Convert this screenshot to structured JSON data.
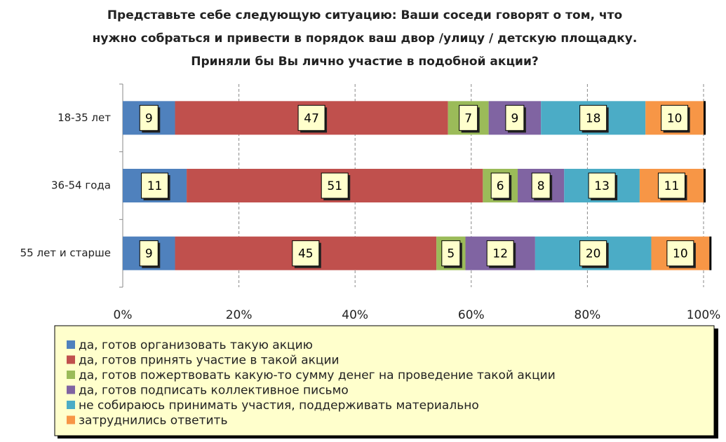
{
  "chart_data": {
    "type": "stacked_bar_horizontal",
    "title": "Представьте себе следующую ситуацию: Ваши соседи говорят о том, что нужно собраться и привести в порядок ваш двор /улицу / детскую площадку. Приняли бы Вы лично участие в подобной акции?",
    "categories": [
      "18-35 лет",
      "36-54 года",
      "55 лет и старше"
    ],
    "series": [
      {
        "name": "да, готов организовать такую акцию",
        "color": "#4f81bd",
        "values": [
          9,
          11,
          9
        ]
      },
      {
        "name": "да, готов принять участие в такой акции",
        "color": "#c0504d",
        "values": [
          47,
          51,
          45
        ]
      },
      {
        "name": "да, готов пожертвовать какую-то сумму денег на проведение такой акции",
        "color": "#9bbb59",
        "values": [
          7,
          6,
          5
        ]
      },
      {
        "name": "да, готов подписать коллективное письмо",
        "color": "#8064a2",
        "values": [
          9,
          8,
          12
        ]
      },
      {
        "name": "не собираюсь принимать участия, поддерживать материально",
        "color": "#4bacc6",
        "values": [
          18,
          13,
          20
        ]
      },
      {
        "name": "затруднились ответить",
        "color": "#f79646",
        "values": [
          10,
          11,
          10
        ]
      }
    ],
    "xlim": [
      0,
      100
    ],
    "xticks": [
      {
        "value": 0,
        "label": "0%"
      },
      {
        "value": 20,
        "label": "20%"
      },
      {
        "value": 40,
        "label": "40%"
      },
      {
        "value": 60,
        "label": "60%"
      },
      {
        "value": 80,
        "label": "80%"
      },
      {
        "value": 100,
        "label": "100%"
      }
    ],
    "grid": true
  }
}
